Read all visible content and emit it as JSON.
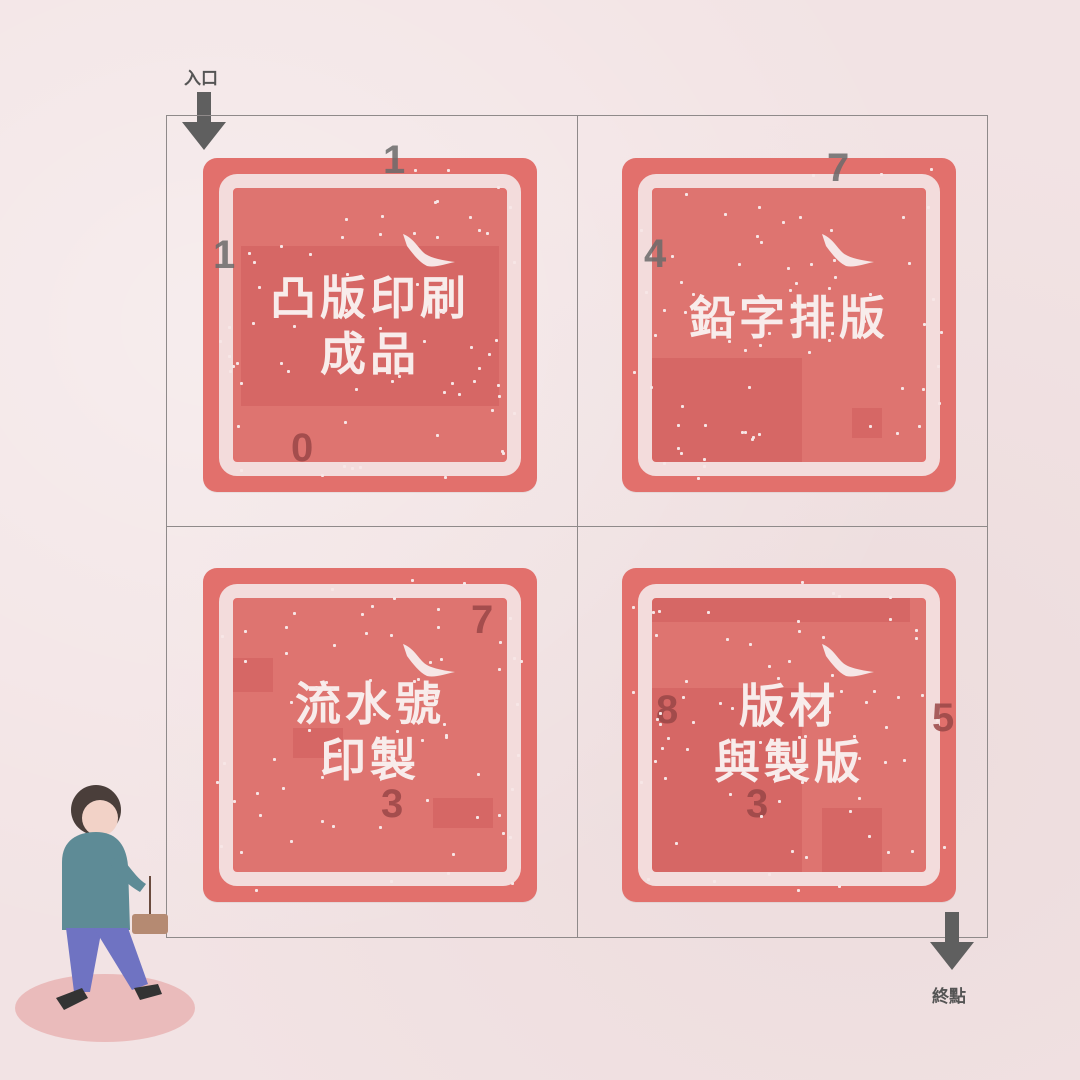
{
  "labels": {
    "entrance": "入口",
    "exit": "終點"
  },
  "tiles": [
    {
      "title_line1": "凸版印刷",
      "title_line2": "成品",
      "digits": [
        "1",
        "1",
        "0"
      ]
    },
    {
      "title_line1": "鉛字排版",
      "title_line2": "",
      "digits": [
        "7",
        "4"
      ]
    },
    {
      "title_line1": "流水號",
      "title_line2": "印製",
      "digits": [
        "7",
        "3"
      ]
    },
    {
      "title_line1": "版材",
      "title_line2": "與製版",
      "digits": [
        "8",
        "3",
        "5"
      ]
    }
  ],
  "colors": {
    "tile": "#e2706c",
    "frame": "#f3dcdc",
    "background": "#f2e3e4"
  }
}
